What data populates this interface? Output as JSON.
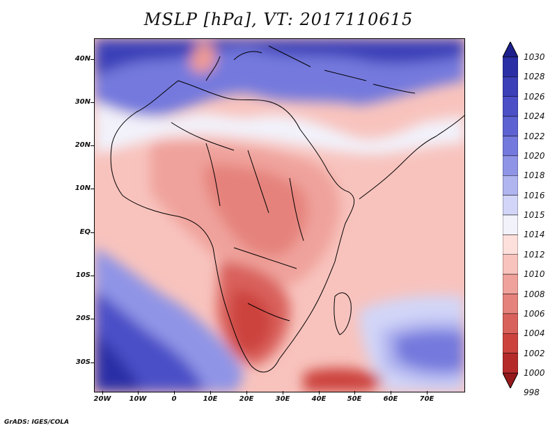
{
  "title": "MSLP [hPa], VT: 2017110615",
  "credit": "GrADS: IGES/COLA",
  "latitude_labels": [
    "40N",
    "30N",
    "20N",
    "10N",
    "EQ",
    "10S",
    "20S",
    "30S"
  ],
  "longitude_labels": [
    "20W",
    "10W",
    "0",
    "10E",
    "20E",
    "30E",
    "40E",
    "50E",
    "60E",
    "70E"
  ],
  "colorbar": {
    "levels": [
      "1030",
      "1028",
      "1026",
      "1024",
      "1022",
      "1020",
      "1018",
      "1016",
      "1015",
      "1014",
      "1012",
      "1010",
      "1008",
      "1006",
      "1004",
      "1002",
      "1000",
      "998"
    ],
    "colors": [
      "#1c1f8c",
      "#2a2fa6",
      "#3b3fb8",
      "#4b50c7",
      "#5d62d2",
      "#7479dd",
      "#9094e6",
      "#b0b4ef",
      "#d2d5f7",
      "#f2f2fb",
      "#fde0dc",
      "#f8c3bd",
      "#efa29b",
      "#e5827b",
      "#d9615b",
      "#cc433e",
      "#b52b2a",
      "#951a1b"
    ]
  }
}
